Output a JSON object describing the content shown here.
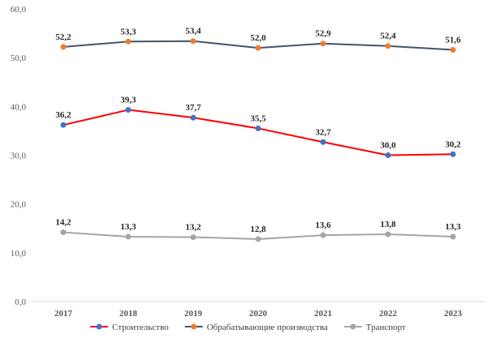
{
  "chart_data": {
    "type": "line",
    "categories": [
      "2017",
      "2018",
      "2019",
      "2020",
      "2021",
      "2022",
      "2023"
    ],
    "ylim": [
      0,
      60
    ],
    "ytick_labels": [
      "0,0",
      "10,0",
      "20,0",
      "30,0",
      "40,0",
      "50,0",
      "60,0"
    ],
    "grid": false,
    "legend_position": "bottom",
    "series": [
      {
        "name": "Строительство",
        "values": [
          36.2,
          39.3,
          37.7,
          35.5,
          32.7,
          30.0,
          30.2
        ],
        "labels": [
          "36,2",
          "39,3",
          "37,7",
          "35,5",
          "32,7",
          "30,0",
          "30,2"
        ],
        "line_color": "#ff0000",
        "marker_color": "#4472c4"
      },
      {
        "name": "Обрабатывающие производства",
        "values": [
          52.2,
          53.3,
          53.4,
          52.0,
          52.9,
          52.4,
          51.6
        ],
        "labels": [
          "52,2",
          "53,3",
          "53,4",
          "52,0",
          "52,9",
          "52,4",
          "51,6"
        ],
        "line_color": "#44546a",
        "marker_color": "#ed7d31"
      },
      {
        "name": "Транспорт",
        "values": [
          14.2,
          13.3,
          13.2,
          12.8,
          13.6,
          13.8,
          13.3
        ],
        "labels": [
          "14,2",
          "13,3",
          "13,2",
          "12,8",
          "13,6",
          "13,8",
          "13,3"
        ],
        "line_color": "#a5a5a5",
        "marker_color": "#a5a5a5"
      }
    ]
  }
}
